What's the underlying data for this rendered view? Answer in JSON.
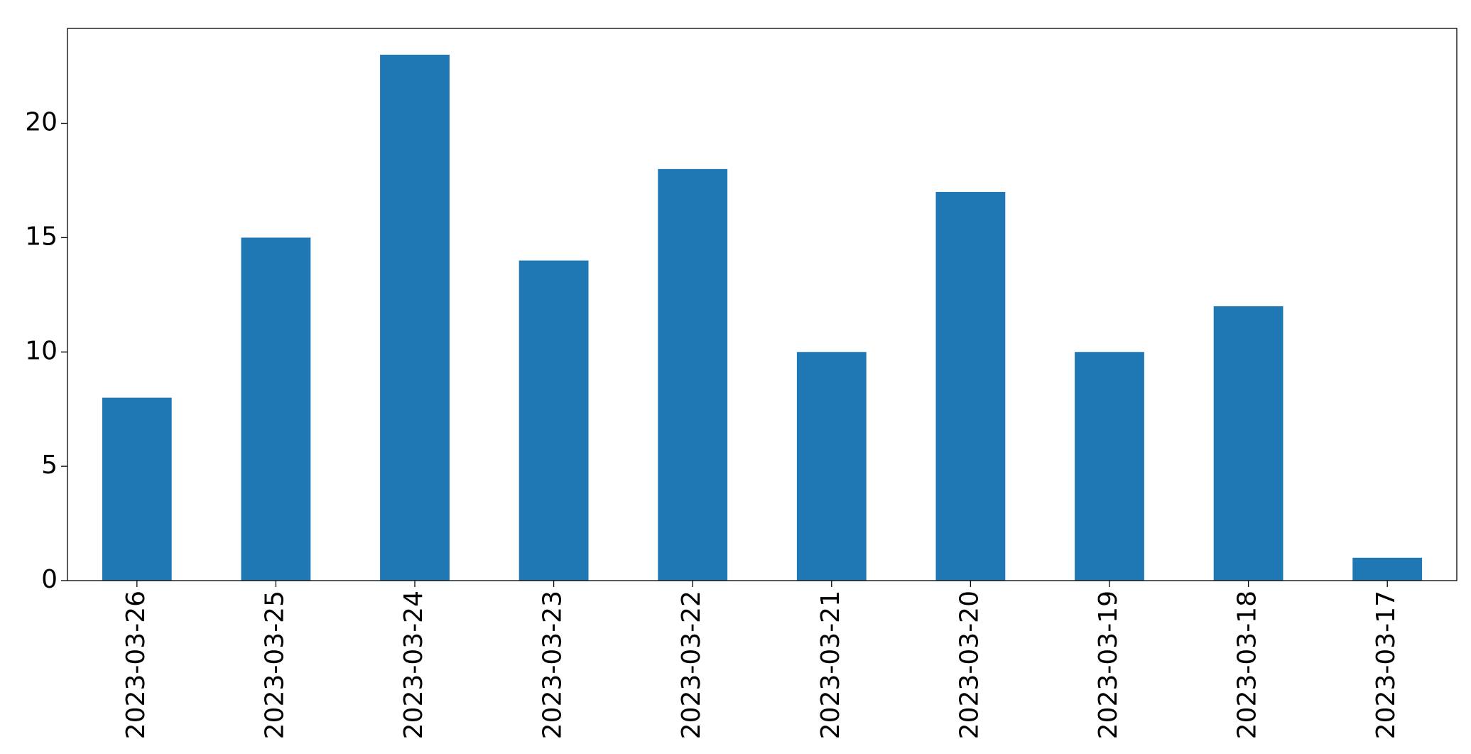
{
  "chart_data": {
    "type": "bar",
    "categories": [
      "2023-03-26",
      "2023-03-25",
      "2023-03-24",
      "2023-03-23",
      "2023-03-22",
      "2023-03-21",
      "2023-03-20",
      "2023-03-19",
      "2023-03-18",
      "2023-03-17"
    ],
    "values": [
      8,
      15,
      23,
      14,
      18,
      10,
      17,
      10,
      12,
      1
    ],
    "color": "#1f77b4",
    "ylim": [
      0,
      24.15
    ],
    "yticks": [
      0,
      5,
      10,
      15,
      20
    ],
    "grid": false
  }
}
